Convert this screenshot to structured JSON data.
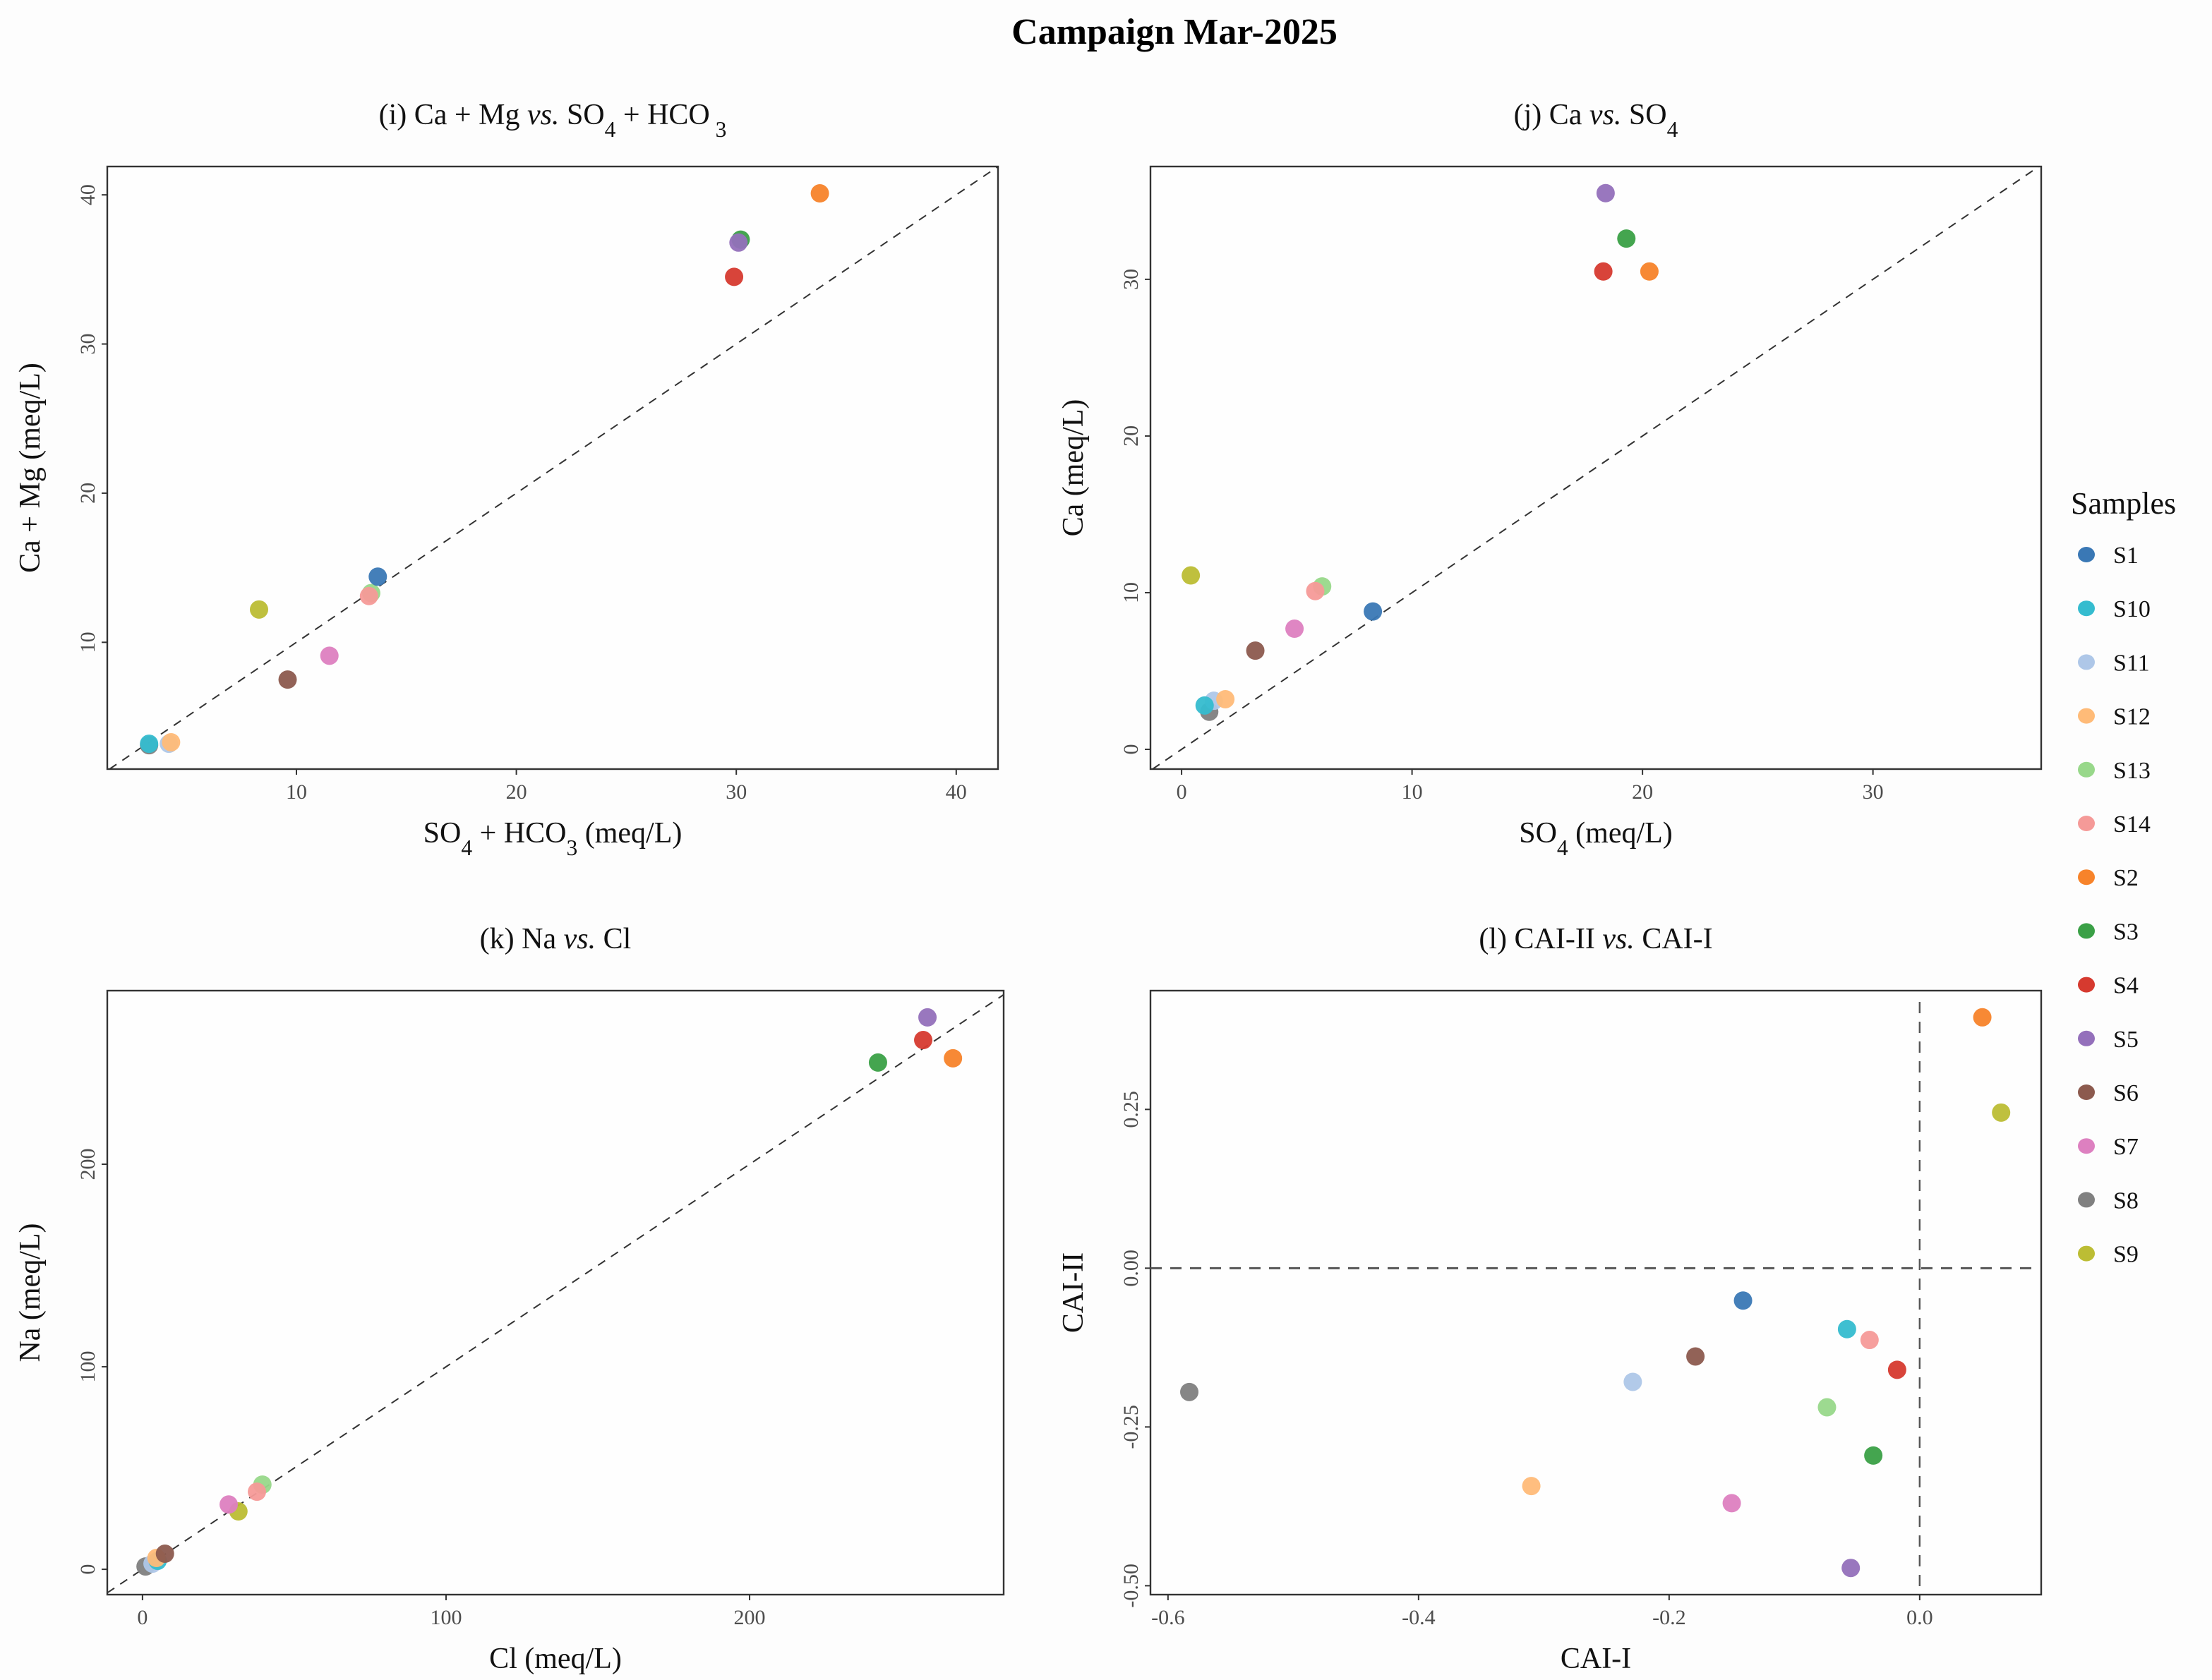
{
  "title": "Campaign Mar-2025",
  "legend": {
    "title": "Samples",
    "placement": "right",
    "items": [
      {
        "label": "S1",
        "color": "#3a78b5"
      },
      {
        "label": "S10",
        "color": "#35bccf"
      },
      {
        "label": "S11",
        "color": "#aec7e8"
      },
      {
        "label": "S12",
        "color": "#ffbb78"
      },
      {
        "label": "S13",
        "color": "#98d88a"
      },
      {
        "label": "S14",
        "color": "#f59a98"
      },
      {
        "label": "S2",
        "color": "#f7832a"
      },
      {
        "label": "S3",
        "color": "#3aa046"
      },
      {
        "label": "S4",
        "color": "#d63a2f"
      },
      {
        "label": "S5",
        "color": "#9470bb"
      },
      {
        "label": "S6",
        "color": "#8c5a4e"
      },
      {
        "label": "S7",
        "color": "#dd80c0"
      },
      {
        "label": "S8",
        "color": "#808080"
      },
      {
        "label": "S9",
        "color": "#bcbd34"
      }
    ]
  },
  "chart_data": [
    {
      "type": "scatter",
      "title": [
        {
          "t": "(i) Ca + Mg   "
        },
        {
          "t": "vs.",
          "i": true
        },
        {
          "t": "  SO"
        },
        {
          "t": "4",
          "sub": true
        },
        {
          "t": " +  HCO"
        },
        {
          "t": " 3",
          "sub": true
        }
      ],
      "xlabel": [
        {
          "t": "SO"
        },
        {
          "t": "4",
          "sub": true
        },
        {
          "t": " +  HCO"
        },
        {
          "t": "3",
          "sub": true
        },
        {
          "t": " (meq/L)"
        }
      ],
      "ylabel": [
        {
          "t": "Ca +  Mg  (meq/L)"
        }
      ],
      "xlim": [
        1.4,
        41.9
      ],
      "ylim": [
        1.5,
        41.9
      ],
      "xticks": [
        {
          "v": 10,
          "label": "10"
        },
        {
          "v": 20,
          "label": "20"
        },
        {
          "v": 30,
          "label": "30"
        },
        {
          "v": 40,
          "label": "40"
        }
      ],
      "yticks": [
        {
          "v": 10,
          "label": "10"
        },
        {
          "v": 20,
          "label": "20"
        },
        {
          "v": 30,
          "label": "30"
        },
        {
          "v": 40,
          "label": "40"
        }
      ],
      "reference": "1:1 line",
      "grid": false,
      "points": [
        {
          "sample": "S8",
          "x": 3.3,
          "y": 3.1
        },
        {
          "sample": "S11",
          "x": 4.2,
          "y": 3.2
        },
        {
          "sample": "S10",
          "x": 3.3,
          "y": 3.2
        },
        {
          "sample": "S12",
          "x": 4.3,
          "y": 3.3
        },
        {
          "sample": "S6",
          "x": 9.6,
          "y": 7.5
        },
        {
          "sample": "S7",
          "x": 11.5,
          "y": 9.1
        },
        {
          "sample": "S9",
          "x": 8.3,
          "y": 12.2
        },
        {
          "sample": "S13",
          "x": 13.4,
          "y": 13.3
        },
        {
          "sample": "S14",
          "x": 13.3,
          "y": 13.1
        },
        {
          "sample": "S1",
          "x": 13.7,
          "y": 14.4
        },
        {
          "sample": "S4",
          "x": 29.9,
          "y": 34.5
        },
        {
          "sample": "S3",
          "x": 30.2,
          "y": 37.0
        },
        {
          "sample": "S5",
          "x": 30.1,
          "y": 36.8
        },
        {
          "sample": "S2",
          "x": 33.8,
          "y": 40.1
        }
      ]
    },
    {
      "type": "scatter",
      "title": [
        {
          "t": "(j) Ca   "
        },
        {
          "t": "vs.",
          "i": true
        },
        {
          "t": "  SO"
        },
        {
          "t": "4",
          "sub": true
        }
      ],
      "xlabel": [
        {
          "t": "SO"
        },
        {
          "t": "4",
          "sub": true
        },
        {
          "t": " (meq/L)"
        }
      ],
      "ylabel": [
        {
          "t": "Ca  (meq/L)"
        }
      ],
      "xlim": [
        -1.35,
        37.3
      ],
      "ylim": [
        -1.26,
        37.2
      ],
      "xticks": [
        {
          "v": 0,
          "label": "0"
        },
        {
          "v": 10,
          "label": "10"
        },
        {
          "v": 20,
          "label": "20"
        },
        {
          "v": 30,
          "label": "30"
        }
      ],
      "yticks": [
        {
          "v": 0,
          "label": "0"
        },
        {
          "v": 10,
          "label": "10"
        },
        {
          "v": 20,
          "label": "20"
        },
        {
          "v": 30,
          "label": "30"
        }
      ],
      "reference": "1:1 line",
      "grid": false,
      "points": [
        {
          "sample": "S8",
          "x": 1.2,
          "y": 2.4
        },
        {
          "sample": "S11",
          "x": 1.4,
          "y": 3.1
        },
        {
          "sample": "S10",
          "x": 1.0,
          "y": 2.8
        },
        {
          "sample": "S12",
          "x": 1.9,
          "y": 3.2
        },
        {
          "sample": "S6",
          "x": 3.2,
          "y": 6.3
        },
        {
          "sample": "S7",
          "x": 4.9,
          "y": 7.7
        },
        {
          "sample": "S1",
          "x": 8.3,
          "y": 8.8
        },
        {
          "sample": "S13",
          "x": 6.1,
          "y": 10.4
        },
        {
          "sample": "S14",
          "x": 5.8,
          "y": 10.1
        },
        {
          "sample": "S9",
          "x": 0.4,
          "y": 11.1
        },
        {
          "sample": "S4",
          "x": 18.3,
          "y": 30.5
        },
        {
          "sample": "S2",
          "x": 20.3,
          "y": 30.5
        },
        {
          "sample": "S3",
          "x": 19.3,
          "y": 32.6
        },
        {
          "sample": "S5",
          "x": 18.4,
          "y": 35.5
        }
      ]
    },
    {
      "type": "scatter",
      "title": [
        {
          "t": "(k) Na   "
        },
        {
          "t": "vs.",
          "i": true
        },
        {
          "t": "  Cl"
        }
      ],
      "xlabel": [
        {
          "t": "Cl (meq/L)"
        }
      ],
      "ylabel": [
        {
          "t": "Na  (meq/L)"
        }
      ],
      "xlim": [
        -11.6,
        283.7
      ],
      "ylim": [
        -12.5,
        285.7
      ],
      "xticks": [
        {
          "v": 0,
          "label": "0"
        },
        {
          "v": 100,
          "label": "100"
        },
        {
          "v": 200,
          "label": "200"
        }
      ],
      "yticks": [
        {
          "v": 0,
          "label": "0"
        },
        {
          "v": 100,
          "label": "100"
        },
        {
          "v": 200,
          "label": "200"
        }
      ],
      "reference": "1:1 line",
      "grid": false,
      "points": [
        {
          "sample": "S8",
          "x": 1.0,
          "y": 1.4
        },
        {
          "sample": "S11",
          "x": 3.3,
          "y": 2.8
        },
        {
          "sample": "S10",
          "x": 5.0,
          "y": 4.2
        },
        {
          "sample": "S12",
          "x": 4.6,
          "y": 5.6
        },
        {
          "sample": "S6",
          "x": 7.4,
          "y": 7.7
        },
        {
          "sample": "S9",
          "x": 31.6,
          "y": 28.6
        },
        {
          "sample": "S7",
          "x": 28.4,
          "y": 32.0
        },
        {
          "sample": "S13",
          "x": 39.5,
          "y": 41.8
        },
        {
          "sample": "S14",
          "x": 37.7,
          "y": 38.3
        },
        {
          "sample": "S3",
          "x": 242.3,
          "y": 250.2
        },
        {
          "sample": "S2",
          "x": 267.0,
          "y": 252.3
        },
        {
          "sample": "S4",
          "x": 257.2,
          "y": 261.3
        },
        {
          "sample": "S5",
          "x": 258.6,
          "y": 272.5
        }
      ]
    },
    {
      "type": "scatter",
      "title": [
        {
          "t": "(l) CAI-II   "
        },
        {
          "t": "vs.",
          "i": true
        },
        {
          "t": "  CAI-I"
        }
      ],
      "xlabel": [
        {
          "t": "CAI-I"
        }
      ],
      "ylabel": [
        {
          "t": "CAI-II"
        }
      ],
      "xlim": [
        -0.614,
        0.097
      ],
      "ylim": [
        -0.514,
        0.437
      ],
      "xticks": [
        {
          "v": -0.6,
          "label": "-0.6"
        },
        {
          "v": -0.4,
          "label": "-0.4"
        },
        {
          "v": -0.2,
          "label": "-0.2"
        },
        {
          "v": 0,
          "label": "0.0"
        }
      ],
      "yticks": [
        {
          "v": -0.5,
          "label": "-0.50"
        },
        {
          "v": -0.25,
          "label": "-0.25"
        },
        {
          "v": 0,
          "label": "0.00"
        },
        {
          "v": 0.25,
          "label": "0.25"
        }
      ],
      "reference": "zero lines",
      "grid": false,
      "points": [
        {
          "sample": "S2",
          "x": 0.05,
          "y": 0.395
        },
        {
          "sample": "S9",
          "x": 0.065,
          "y": 0.245
        },
        {
          "sample": "S1",
          "x": -0.141,
          "y": -0.051
        },
        {
          "sample": "S10",
          "x": -0.058,
          "y": -0.096
        },
        {
          "sample": "S14",
          "x": -0.04,
          "y": -0.113
        },
        {
          "sample": "S6",
          "x": -0.179,
          "y": -0.139
        },
        {
          "sample": "S4",
          "x": -0.018,
          "y": -0.16
        },
        {
          "sample": "S11",
          "x": -0.229,
          "y": -0.179
        },
        {
          "sample": "S8",
          "x": -0.583,
          "y": -0.195
        },
        {
          "sample": "S13",
          "x": -0.074,
          "y": -0.219
        },
        {
          "sample": "S3",
          "x": -0.037,
          "y": -0.295
        },
        {
          "sample": "S12",
          "x": -0.31,
          "y": -0.343
        },
        {
          "sample": "S7",
          "x": -0.15,
          "y": -0.37
        },
        {
          "sample": "S5",
          "x": -0.055,
          "y": -0.472
        }
      ]
    }
  ]
}
